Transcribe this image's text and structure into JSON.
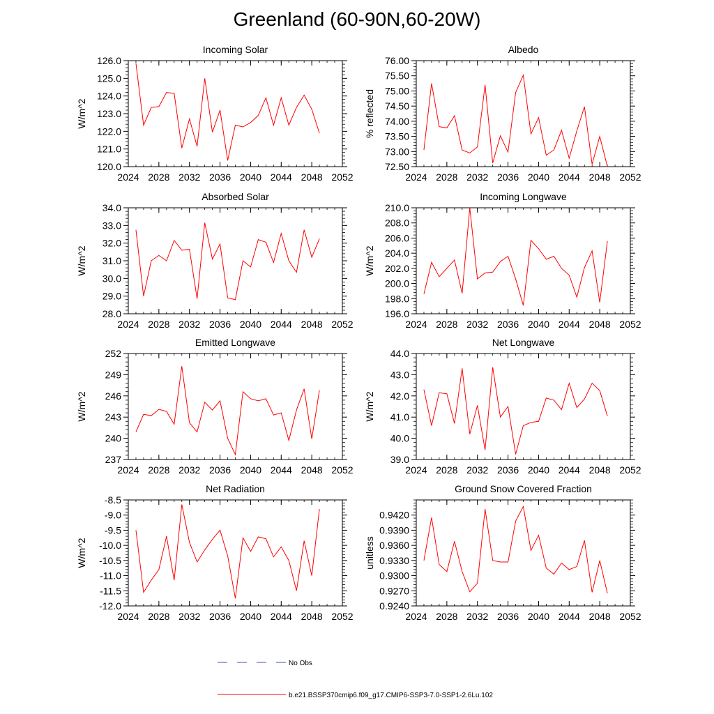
{
  "figure": {
    "title": "Greenland (60-90N,60-20W)",
    "series_color": "#ff0000",
    "obs_color": "#3b4fb8"
  },
  "legend": {
    "obs_label": "No Obs",
    "model_label": "b.e21.BSSP370cmip6.f09_g17.CMIP6-SSP3-7.0-SSP1-2.6Lu.102"
  },
  "chart_data": [
    {
      "type": "line",
      "title": "Incoming Solar",
      "ylabel": "W/m^2",
      "xlabel": "",
      "xlim": [
        2024,
        2052
      ],
      "xticks": [
        "2024",
        "2028",
        "2032",
        "2036",
        "2040",
        "2044",
        "2048",
        "2052"
      ],
      "ylim": [
        120.0,
        126.0
      ],
      "yticks": [
        "120.0",
        "121.0",
        "122.0",
        "123.0",
        "124.0",
        "125.0",
        "126.0"
      ],
      "series": [
        {
          "x": [
            2025,
            2026,
            2027,
            2028,
            2029,
            2030,
            2031,
            2032,
            2033,
            2034,
            2035,
            2036,
            2037,
            2038,
            2039,
            2040,
            2041,
            2042,
            2043,
            2044,
            2045,
            2046,
            2047,
            2048,
            2049
          ],
          "values": [
            125.85,
            122.35,
            123.35,
            123.4,
            124.2,
            124.15,
            121.05,
            122.7,
            121.15,
            125.0,
            121.95,
            123.2,
            120.35,
            122.35,
            122.25,
            122.5,
            122.9,
            123.9,
            122.35,
            123.9,
            122.35,
            123.35,
            124.05,
            123.25,
            121.9
          ]
        }
      ]
    },
    {
      "type": "line",
      "title": "Albedo",
      "ylabel": "% reflected",
      "xlabel": "",
      "xlim": [
        2024,
        2052
      ],
      "xticks": [
        "2024",
        "2028",
        "2032",
        "2036",
        "2040",
        "2044",
        "2048",
        "2052"
      ],
      "ylim": [
        72.5,
        76.0
      ],
      "yticks": [
        "72.50",
        "73.00",
        "73.50",
        "74.00",
        "74.50",
        "75.00",
        "75.50",
        "76.00"
      ],
      "series": [
        {
          "x": [
            2025,
            2026,
            2027,
            2028,
            2029,
            2030,
            2031,
            2032,
            2033,
            2034,
            2035,
            2036,
            2037,
            2038,
            2039,
            2040,
            2041,
            2042,
            2043,
            2044,
            2045,
            2046,
            2047,
            2048,
            2049
          ],
          "values": [
            73.05,
            75.25,
            73.82,
            73.78,
            74.18,
            73.05,
            72.95,
            73.15,
            75.2,
            72.62,
            73.52,
            72.98,
            74.95,
            75.52,
            73.58,
            74.12,
            72.88,
            73.05,
            73.7,
            72.78,
            73.68,
            74.48,
            72.58,
            73.5,
            72.5
          ]
        }
      ]
    },
    {
      "type": "line",
      "title": "Absorbed Solar",
      "ylabel": "W/m^2",
      "xlabel": "",
      "xlim": [
        2024,
        2052
      ],
      "xticks": [
        "2024",
        "2028",
        "2032",
        "2036",
        "2040",
        "2044",
        "2048",
        "2052"
      ],
      "ylim": [
        28.0,
        34.0
      ],
      "yticks": [
        "28.0",
        "29.0",
        "30.0",
        "31.0",
        "32.0",
        "33.0",
        "34.0"
      ],
      "series": [
        {
          "x": [
            2025,
            2026,
            2027,
            2028,
            2029,
            2030,
            2031,
            2032,
            2033,
            2034,
            2035,
            2036,
            2037,
            2038,
            2039,
            2040,
            2041,
            2042,
            2043,
            2044,
            2045,
            2046,
            2047,
            2048,
            2049
          ],
          "values": [
            32.75,
            29.0,
            31.0,
            31.3,
            31.0,
            32.15,
            31.6,
            31.65,
            28.85,
            33.15,
            31.1,
            31.95,
            28.9,
            28.8,
            31.0,
            30.65,
            32.2,
            32.05,
            30.9,
            32.55,
            31.0,
            30.35,
            32.75,
            31.2,
            32.25
          ]
        }
      ]
    },
    {
      "type": "line",
      "title": "Incoming Longwave",
      "ylabel": "W/m^2",
      "xlabel": "",
      "xlim": [
        2024,
        2052
      ],
      "xticks": [
        "2024",
        "2028",
        "2032",
        "2036",
        "2040",
        "2044",
        "2048",
        "2052"
      ],
      "ylim": [
        196.0,
        210.0
      ],
      "yticks": [
        "196.0",
        "198.0",
        "200.0",
        "202.0",
        "204.0",
        "206.0",
        "208.0",
        "210.0"
      ],
      "series": [
        {
          "x": [
            2025,
            2026,
            2027,
            2028,
            2029,
            2030,
            2031,
            2032,
            2033,
            2034,
            2035,
            2036,
            2037,
            2038,
            2039,
            2040,
            2041,
            2042,
            2043,
            2044,
            2045,
            2046,
            2047,
            2048,
            2049
          ],
          "values": [
            198.6,
            202.8,
            200.9,
            202.0,
            203.1,
            198.7,
            210.0,
            200.6,
            201.4,
            201.5,
            202.9,
            203.6,
            200.6,
            197.1,
            205.7,
            204.6,
            203.2,
            203.6,
            202.0,
            201.1,
            198.2,
            202.1,
            204.3,
            197.5,
            205.6
          ]
        }
      ]
    },
    {
      "type": "line",
      "title": "Emitted Longwave",
      "ylabel": "W/m^2",
      "xlabel": "",
      "xlim": [
        2024,
        2052
      ],
      "xticks": [
        "2024",
        "2028",
        "2032",
        "2036",
        "2040",
        "2044",
        "2048",
        "2052"
      ],
      "ylim": [
        237,
        252
      ],
      "yticks": [
        "237",
        "240",
        "243",
        "246",
        "249",
        "252"
      ],
      "series": [
        {
          "x": [
            2025,
            2026,
            2027,
            2028,
            2029,
            2030,
            2031,
            2032,
            2033,
            2034,
            2035,
            2036,
            2037,
            2038,
            2039,
            2040,
            2041,
            2042,
            2043,
            2044,
            2045,
            2046,
            2047,
            2048,
            2049
          ],
          "values": [
            240.9,
            243.4,
            243.2,
            244.1,
            243.8,
            242.0,
            250.2,
            242.2,
            240.9,
            245.1,
            244.0,
            245.3,
            240.0,
            237.7,
            246.6,
            245.6,
            245.3,
            245.6,
            243.3,
            243.6,
            239.7,
            244.0,
            247.0,
            239.9,
            246.8
          ]
        }
      ]
    },
    {
      "type": "line",
      "title": "Net Longwave",
      "ylabel": "W/m^2",
      "xlabel": "",
      "xlim": [
        2024,
        2052
      ],
      "xticks": [
        "2024",
        "2028",
        "2032",
        "2036",
        "2040",
        "2044",
        "2048",
        "2052"
      ],
      "ylim": [
        39.0,
        44.0
      ],
      "yticks": [
        "39.0",
        "40.0",
        "41.0",
        "42.0",
        "43.0",
        "44.0"
      ],
      "series": [
        {
          "x": [
            2025,
            2026,
            2027,
            2028,
            2029,
            2030,
            2031,
            2032,
            2033,
            2034,
            2035,
            2036,
            2037,
            2038,
            2039,
            2040,
            2041,
            2042,
            2043,
            2044,
            2045,
            2046,
            2047,
            2048,
            2049
          ],
          "values": [
            42.3,
            40.6,
            42.15,
            42.1,
            40.7,
            43.3,
            40.2,
            41.55,
            39.45,
            43.35,
            41.0,
            41.5,
            39.25,
            40.6,
            40.75,
            40.8,
            41.9,
            41.8,
            41.35,
            42.6,
            41.45,
            41.85,
            42.6,
            42.25,
            41.05
          ]
        }
      ]
    },
    {
      "type": "line",
      "title": "Net Radiation",
      "ylabel": "W/m^2",
      "xlabel": "",
      "xlim": [
        2024,
        2052
      ],
      "xticks": [
        "2024",
        "2028",
        "2032",
        "2036",
        "2040",
        "2044",
        "2048",
        "2052"
      ],
      "ylim": [
        -12.0,
        -8.5
      ],
      "yticks": [
        "-12.0",
        "-11.5",
        "-11.0",
        "-10.5",
        "-10.0",
        "-9.5",
        "-9.0",
        "-8.5"
      ],
      "series": [
        {
          "x": [
            2025,
            2026,
            2027,
            2028,
            2029,
            2030,
            2031,
            2032,
            2033,
            2034,
            2035,
            2036,
            2037,
            2038,
            2039,
            2040,
            2041,
            2042,
            2043,
            2044,
            2045,
            2046,
            2047,
            2048,
            2049
          ],
          "values": [
            -9.5,
            -11.55,
            -11.15,
            -10.8,
            -9.7,
            -11.15,
            -8.65,
            -9.9,
            -10.55,
            -10.15,
            -9.8,
            -9.5,
            -10.35,
            -11.75,
            -9.75,
            -10.2,
            -9.72,
            -9.78,
            -10.38,
            -10.05,
            -10.5,
            -11.5,
            -9.85,
            -11.0,
            -8.8
          ]
        }
      ]
    },
    {
      "type": "line",
      "title": "Ground Snow Covered Fraction",
      "ylabel": "unitless",
      "xlabel": "",
      "xlim": [
        2024,
        2052
      ],
      "xticks": [
        "2024",
        "2028",
        "2032",
        "2036",
        "2040",
        "2044",
        "2048",
        "2052"
      ],
      "ylim": [
        0.924,
        0.945
      ],
      "yticks": [
        "0.9240",
        "0.9270",
        "0.9300",
        "0.9330",
        "0.9360",
        "0.9390",
        "0.9420"
      ],
      "series": [
        {
          "x": [
            2025,
            2026,
            2027,
            2028,
            2029,
            2030,
            2031,
            2032,
            2033,
            2034,
            2035,
            2036,
            2037,
            2038,
            2039,
            2040,
            2041,
            2042,
            2043,
            2044,
            2045,
            2046,
            2047,
            2048,
            2049
          ],
          "values": [
            0.933,
            0.9415,
            0.9322,
            0.9308,
            0.9368,
            0.9308,
            0.9268,
            0.9285,
            0.9432,
            0.933,
            0.9327,
            0.9327,
            0.9408,
            0.9437,
            0.935,
            0.938,
            0.9315,
            0.9303,
            0.9325,
            0.9312,
            0.9318,
            0.937,
            0.9267,
            0.933,
            0.9265
          ]
        }
      ]
    }
  ]
}
